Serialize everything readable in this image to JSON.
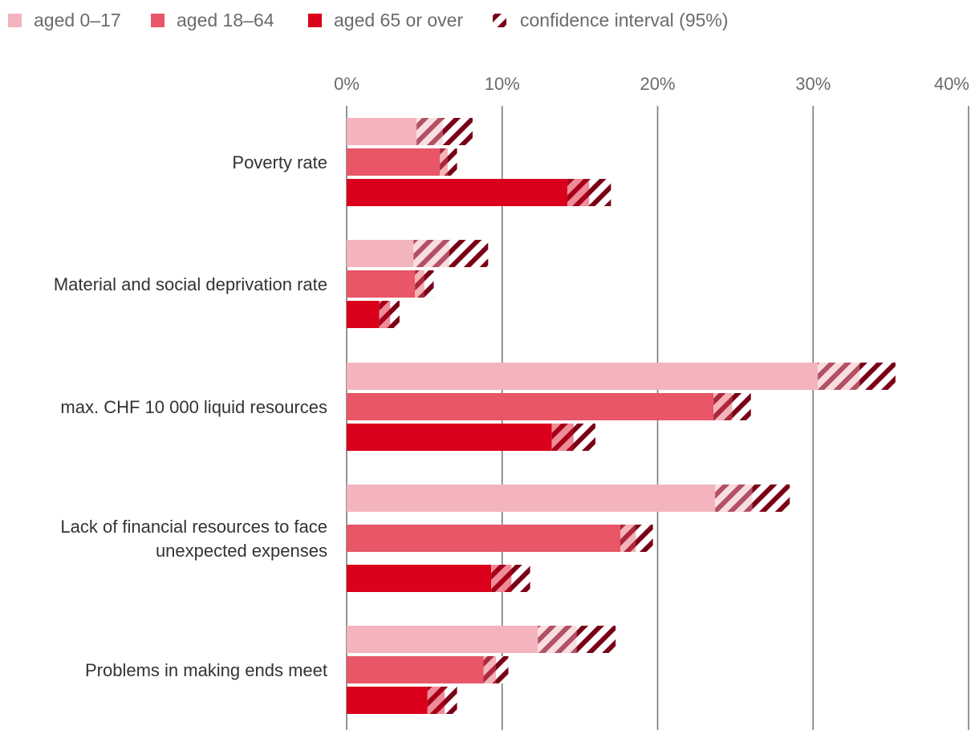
{
  "chart_data": {
    "type": "bar",
    "orientation": "horizontal",
    "categories": [
      [
        "Poverty rate"
      ],
      [
        "Material and social deprivation rate"
      ],
      [
        "max. CHF 10 000 liquid resources"
      ],
      [
        "Lack of financial resources to face",
        "unexpected expenses"
      ],
      [
        "Problems in making ends meet"
      ]
    ],
    "series": [
      {
        "name": "aged 0–17",
        "color": "#f4b4bd",
        "values": [
          6.2,
          6.6,
          33.0,
          26.1,
          14.8
        ],
        "ci": [
          [
            4.5,
            8.1
          ],
          [
            4.3,
            9.1
          ],
          [
            30.3,
            35.3
          ],
          [
            23.7,
            28.5
          ],
          [
            12.3,
            17.3
          ]
        ]
      },
      {
        "name": "aged 18–64",
        "color": "#e85667",
        "values": [
          6.5,
          5.0,
          24.8,
          18.6,
          9.6
        ],
        "ci": [
          [
            6.0,
            7.1
          ],
          [
            4.4,
            5.6
          ],
          [
            23.6,
            26.0
          ],
          [
            17.6,
            19.7
          ],
          [
            8.8,
            10.4
          ]
        ]
      },
      {
        "name": "aged 65 or over",
        "color": "#db001b",
        "values": [
          15.6,
          2.8,
          14.6,
          10.6,
          6.3
        ],
        "ci": [
          [
            14.2,
            17.0
          ],
          [
            2.1,
            3.4
          ],
          [
            13.2,
            16.0
          ],
          [
            9.3,
            11.8
          ],
          [
            5.2,
            7.1
          ]
        ]
      }
    ],
    "ci_label": "confidence interval (95%)",
    "ci_color": "#7a0018",
    "xlim": [
      0,
      40
    ],
    "xticks": [
      0,
      10,
      20,
      30,
      40
    ],
    "xtick_labels": [
      "0%",
      "10%",
      "20%",
      "30%",
      "40%"
    ],
    "legend_position": "top-left",
    "grid": true
  }
}
